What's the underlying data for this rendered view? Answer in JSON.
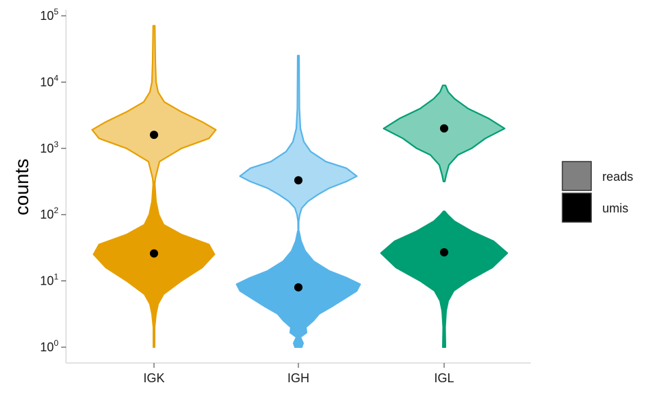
{
  "chart_data": {
    "type": "violin",
    "ylabel": "counts",
    "xlabel": "",
    "yscale": "log10",
    "ylim": [
      1,
      100000
    ],
    "yticks": [
      {
        "base": "10",
        "exp": "0"
      },
      {
        "base": "10",
        "exp": "1"
      },
      {
        "base": "10",
        "exp": "2"
      },
      {
        "base": "10",
        "exp": "3"
      },
      {
        "base": "10",
        "exp": "4"
      },
      {
        "base": "10",
        "exp": "5"
      }
    ],
    "categories": [
      "IGK",
      "IGH",
      "IGL"
    ],
    "grid": false,
    "legend_position": "right",
    "legend": [
      {
        "name": "reads",
        "color": "#808080"
      },
      {
        "name": "umis",
        "color": "#000000"
      }
    ],
    "series": [
      {
        "category": "IGK",
        "color": "#E69F00",
        "reads": {
          "median": 1600,
          "min": 300,
          "max": 70000
        },
        "umis": {
          "median": 26,
          "min": 1,
          "max": 300
        }
      },
      {
        "category": "IGH",
        "color": "#56B4E9",
        "reads": {
          "median": 330,
          "min": 80,
          "max": 25000
        },
        "umis": {
          "median": 8,
          "min": 1,
          "max": 60
        }
      },
      {
        "category": "IGL",
        "color": "#009E73",
        "reads": {
          "median": 2000,
          "min": 300,
          "max": 9000
        },
        "umis": {
          "median": 27,
          "min": 1,
          "max": 110
        }
      }
    ]
  }
}
